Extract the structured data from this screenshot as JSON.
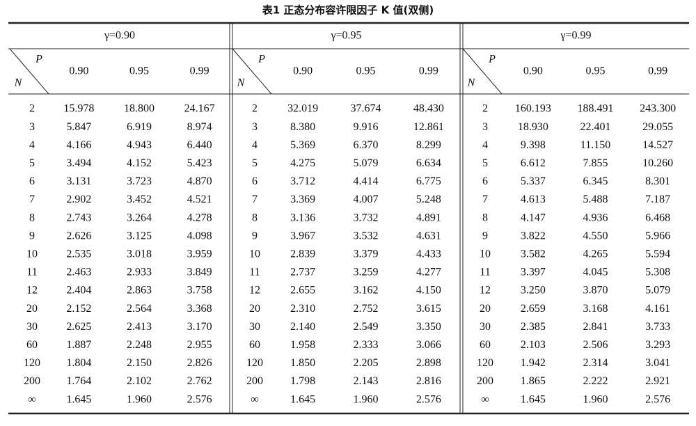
{
  "title": "表1  正态分布容许限因子 K 值(双侧)",
  "groups": [
    {
      "label": "γ=0.90",
      "corner_p": "P",
      "corner_n": "N",
      "columns": [
        "0.90",
        "0.95",
        "0.99"
      ],
      "rows": [
        [
          "2",
          "15.978",
          "18.800",
          "24.167"
        ],
        [
          "3",
          "5.847",
          "6.919",
          "8.974"
        ],
        [
          "4",
          "4.166",
          "4.943",
          "6.440"
        ],
        [
          "5",
          "3.494",
          "4.152",
          "5.423"
        ],
        [
          "6",
          "3.131",
          "3.723",
          "4.870"
        ],
        [
          "7",
          "2.902",
          "3.452",
          "4.521"
        ],
        [
          "8",
          "2.743",
          "3.264",
          "4.278"
        ],
        [
          "9",
          "2.626",
          "3.125",
          "4.098"
        ],
        [
          "10",
          "2.535",
          "3.018",
          "3.959"
        ],
        [
          "11",
          "2.463",
          "2.933",
          "3.849"
        ],
        [
          "12",
          "2.404",
          "2.863",
          "3.758"
        ],
        [
          "20",
          "2.152",
          "2.564",
          "3.368"
        ],
        [
          "30",
          "2.625",
          "2.413",
          "3.170"
        ],
        [
          "60",
          "1.887",
          "2.248",
          "2.955"
        ],
        [
          "120",
          "1.804",
          "2.150",
          "2.826"
        ],
        [
          "200",
          "1.764",
          "2.102",
          "2.762"
        ],
        [
          "∞",
          "1.645",
          "1.960",
          "2.576"
        ]
      ]
    },
    {
      "label": "γ=0.95",
      "corner_p": "P",
      "corner_n": "N",
      "columns": [
        "0.90",
        "0.95",
        "0.99"
      ],
      "rows": [
        [
          "2",
          "32.019",
          "37.674",
          "48.430"
        ],
        [
          "3",
          "8.380",
          "9.916",
          "12.861"
        ],
        [
          "4",
          "5.369",
          "6.370",
          "8.299"
        ],
        [
          "5",
          "4.275",
          "5.079",
          "6.634"
        ],
        [
          "6",
          "3.712",
          "4.414",
          "6.775"
        ],
        [
          "7",
          "3.369",
          "4.007",
          "5.248"
        ],
        [
          "8",
          "3.136",
          "3.732",
          "4.891"
        ],
        [
          "9",
          "3.967",
          "3.532",
          "4.631"
        ],
        [
          "10",
          "2.839",
          "3.379",
          "4.433"
        ],
        [
          "11",
          "2.737",
          "3.259",
          "4.277"
        ],
        [
          "12",
          "2.655",
          "3.162",
          "4.150"
        ],
        [
          "20",
          "2.310",
          "2.752",
          "3.615"
        ],
        [
          "30",
          "2.140",
          "2.549",
          "3.350"
        ],
        [
          "60",
          "1.958",
          "2.333",
          "3.066"
        ],
        [
          "120",
          "1.850",
          "2.205",
          "2.898"
        ],
        [
          "200",
          "1.798",
          "2.143",
          "2.816"
        ],
        [
          "∞",
          "1.645",
          "1.960",
          "2.576"
        ]
      ]
    },
    {
      "label": "γ=0.99",
      "corner_p": "P",
      "corner_n": "N",
      "columns": [
        "0.90",
        "0.95",
        "0.99"
      ],
      "rows": [
        [
          "2",
          "160.193",
          "188.491",
          "243.300"
        ],
        [
          "3",
          "18.930",
          "22.401",
          "29.055"
        ],
        [
          "4",
          "9.398",
          "11.150",
          "14.527"
        ],
        [
          "5",
          "6.612",
          "7.855",
          "10.260"
        ],
        [
          "6",
          "5.337",
          "6.345",
          "8.301"
        ],
        [
          "7",
          "4.613",
          "5.488",
          "7.187"
        ],
        [
          "8",
          "4.147",
          "4.936",
          "6.468"
        ],
        [
          "9",
          "3.822",
          "4.550",
          "5.966"
        ],
        [
          "10",
          "3.582",
          "4.265",
          "5.594"
        ],
        [
          "11",
          "3.397",
          "4.045",
          "5.308"
        ],
        [
          "12",
          "3.250",
          "3.870",
          "5.079"
        ],
        [
          "20",
          "2.659",
          "3.168",
          "4.161"
        ],
        [
          "30",
          "2.385",
          "2.841",
          "3.733"
        ],
        [
          "60",
          "2.103",
          "2.506",
          "3.293"
        ],
        [
          "120",
          "1.942",
          "2.314",
          "3.041"
        ],
        [
          "200",
          "1.865",
          "2.222",
          "2.921"
        ],
        [
          "∞",
          "1.645",
          "1.960",
          "2.576"
        ]
      ]
    }
  ]
}
